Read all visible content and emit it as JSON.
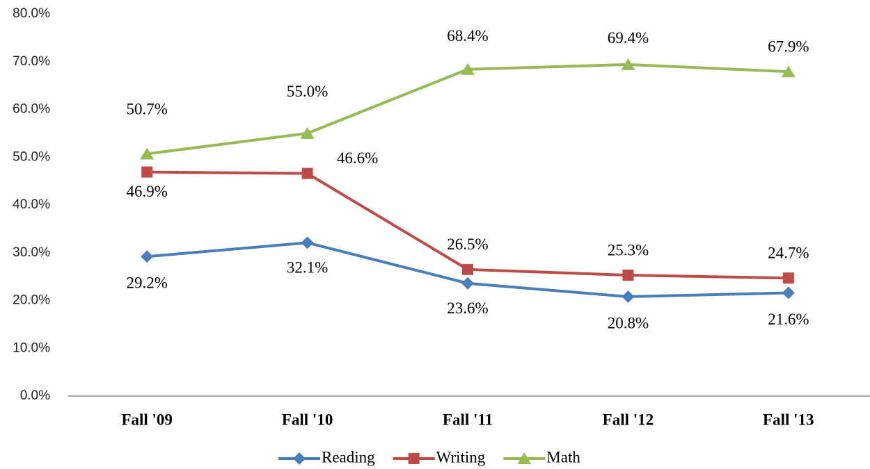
{
  "chart_data": {
    "type": "line",
    "categories": [
      "Fall '09",
      "Fall '10",
      "Fall '11",
      "Fall '12",
      "Fall '13"
    ],
    "series": [
      {
        "name": "Reading",
        "color": "#4a7ebb",
        "marker": "diamond",
        "values": [
          29.2,
          32.1,
          23.6,
          20.8,
          21.6
        ],
        "value_labels": [
          "29.2%",
          "32.1%",
          "23.6%",
          "20.8%",
          "21.6%"
        ]
      },
      {
        "name": "Writing",
        "color": "#be4b48",
        "marker": "square",
        "values": [
          46.9,
          46.6,
          26.5,
          25.3,
          24.7
        ],
        "value_labels": [
          "46.9%",
          "46.6%",
          "26.5%",
          "25.3%",
          "24.7%"
        ]
      },
      {
        "name": "Math",
        "color": "#98b954",
        "marker": "triangle",
        "values": [
          50.7,
          55.0,
          68.4,
          69.4,
          67.9
        ],
        "value_labels": [
          "50.7%",
          "55.0%",
          "68.4%",
          "69.4%",
          "67.9%"
        ]
      }
    ],
    "ylim": [
      0,
      80
    ],
    "yticks": [
      {
        "value": 0,
        "label": "0.0%"
      },
      {
        "value": 10,
        "label": "10.0%"
      },
      {
        "value": 20,
        "label": "20.0%"
      },
      {
        "value": 30,
        "label": "30.0%"
      },
      {
        "value": 40,
        "label": "40.0%"
      },
      {
        "value": 50,
        "label": "50.0%"
      },
      {
        "value": 60,
        "label": "60.0%"
      },
      {
        "value": 70,
        "label": "70.0%"
      },
      {
        "value": 80,
        "label": "80.0%"
      }
    ],
    "grid": false,
    "legend": "bottom"
  }
}
